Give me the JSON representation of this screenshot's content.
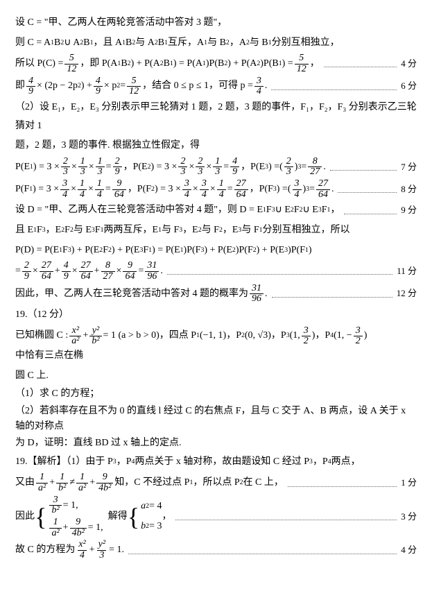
{
  "p1": "设 C = \"甲、乙两人在两轮竞答活动中答对 3 题\"，",
  "p2a": "则 C = A",
  "p2b": "B",
  "p2c": " ∪ A",
  "p2d": "B",
  "p2e": "，且 A",
  "p2f": "B",
  "p2g": " 与 A",
  "p2h": "B",
  "p2i": " 互斥，A",
  "p2j": " 与 B",
  "p2k": "，A",
  "p2l": " 与 B",
  "p2m": " 分别互相独立，",
  "p3a": "所以 P(C) = ",
  "p3b": "，即 P(A",
  "p3c": "B",
  "p3d": ") + P(A",
  "p3e": "B",
  "p3f": ") = P(A",
  "p3g": ")P(B",
  "p3h": ") + P(A",
  "p3i": ")P(B",
  "p3j": ") = ",
  "p3k": "，",
  "s4": "4 分",
  "p4a": "即 ",
  "p4b": " × (2p − 2p",
  "p4c": ") + ",
  "p4d": " × p",
  "p4e": " = ",
  "p4f": "，结合 0 ≤ p ≤ 1，可得 p = ",
  "p4g": " .",
  "s6": "6 分",
  "p5": "（2）设 E₁，E₂，E₃ 分别表示甲三轮猜对 1 题，2 题，3 题的事件，F₁，F₂，F₃ 分别表示乙三轮猜对 1",
  "p5b": "题，2 题，3 题的事件. 根据独立性假定，得",
  "p6a": "P(E",
  "p6b": ") = 3 × ",
  "p6c": " × ",
  "p6d": " × ",
  "p6e": " = ",
  "p6f": "，P(E",
  "p6g": ") = 3 × ",
  "p6h": " × ",
  "p6i": " × ",
  "p6j": " = ",
  "p6k": "，P(E",
  "p6l": ") = ",
  "p6m": " = ",
  "p6n": " .",
  "s7": "7 分",
  "p7a": "P(F",
  "p7b": ") = 3 × ",
  "p7c": " × ",
  "p7d": " × ",
  "p7e": " = ",
  "p7f": "，P(F",
  "p7g": ") = 3 × ",
  "p7h": " × ",
  "p7i": " × ",
  "p7j": " = ",
  "p7k": "，P(F",
  "p7l": ") = ",
  "p7m": " = ",
  "p7n": " .",
  "s8": "8 分",
  "p8a": "设 D = \"甲、乙两人在三轮竞答活动中答对 4 题\"，则 D = E",
  "p8b": "F",
  "p8c": " ∪ E",
  "p8d": "F",
  "p8e": " ∪ E",
  "p8f": "F",
  "p8g": "，",
  "s9": "9 分",
  "p9a": "且 E",
  "p9b": "F",
  "p9c": "，E",
  "p9d": "F",
  "p9e": " 与 E",
  "p9f": "F",
  "p9g": " 两两互斥，E",
  "p9h": " 与 F",
  "p9i": "，E",
  "p9j": " 与 F",
  "p9k": "，E",
  "p9l": " 与 F",
  "p9m": " 分别互相独立，所以",
  "p10a": "P(D) = P(E",
  "p10b": "F",
  "p10c": ") + P(E",
  "p10d": "F",
  "p10e": ") + P(E",
  "p10f": "F",
  "p10g": ") = P(E",
  "p10h": ")P(F",
  "p10i": ") + P(E",
  "p10j": ")P(F",
  "p10k": ") + P(E",
  "p10l": ")P(F",
  "p10m": ")",
  "p11a": "= ",
  "p11b": " × ",
  "p11c": " + ",
  "p11d": " × ",
  "p11e": " + ",
  "p11f": " × ",
  "p11g": " = ",
  "p11h": " .",
  "s11": "11 分",
  "p12a": "因此，甲、乙两人在三轮竞答活动中答对 4 题的概率为 ",
  "p12b": " .",
  "s12": "12 分",
  "q19": "19.（12 分）",
  "q19a": "已知椭圆 C : ",
  "q19b": " + ",
  "q19c": " = 1 (a > b > 0)，四点 P",
  "q19d": "(−1, 1)，P",
  "q19e": "(0, √3)，P",
  "q19f": "，P",
  "q19g": " 中恰有三点在椭",
  "q19h": "圆 C 上.",
  "q19i": "（1）求 C 的方程；",
  "q19j": "（2）若斜率存在且不为 0 的直线 l 经过 C 的右焦点 F，且与 C 交于 A、B 两点，设 A 关于 x 轴的对称点",
  "q19k": "为 D，证明：直线 BD 过 x 轴上的定点.",
  "a19a": "19.【解析】（1）由于 P",
  "a19b": "，P",
  "a19c": " 两点关于 x 轴对称，故由题设知 C 经过 P",
  "a19d": "，P",
  "a19e": " 两点，",
  "a20a": "又由 ",
  "a20b": " + ",
  "a20c": " ≠ ",
  "a20d": " + ",
  "a20e": " 知，C 不经过点 P",
  "a20f": "，所以点 P",
  "a20g": " 在 C 上，",
  "s1": "1 分",
  "a21a": "因此 ",
  "a21b": " = 1,",
  "a21c": " + ",
  "a21d": " = 1,",
  "a21e": "解得 ",
  "a21f": "a",
  "a21g": " = 4",
  "a21h": "b",
  "a21i": " = 3",
  "a21j": "，",
  "s3": "3 分",
  "a22a": "故 C 的方程为 ",
  "a22b": " + ",
  "a22c": " = 1.",
  "s4b": "4 分",
  "f": {
    "5_12n": "5",
    "5_12d": "12",
    "4_9n": "4",
    "4_9d": "9",
    "3_4n": "3",
    "3_4d": "4",
    "2_3n": "2",
    "2_3d": "3",
    "1_3n": "1",
    "1_3d": "3",
    "2_9n": "2",
    "2_9d": "9",
    "4_9n2": "4",
    "4_9d2": "9",
    "8_27n": "8",
    "8_27d": "27",
    "1_4n": "1",
    "1_4d": "4",
    "9_64n": "9",
    "9_64d": "64",
    "27_64n": "27",
    "27_64d": "64",
    "31_96n": "31",
    "31_96d": "96",
    "x2_a2n": "x²",
    "x2_a2d": "a²",
    "y2_b2n": "y²",
    "y2_b2d": "b²",
    "3_2n": "3",
    "3_2d": "2",
    "1_a2n": "1",
    "1_a2d": "a²",
    "1_b2n": "1",
    "1_b2d": "b²",
    "9_4b2n": "9",
    "9_4b2d": "4b²",
    "3_b2n": "3",
    "3_b2d": "b²",
    "x2_4n": "x²",
    "x2_4d": "4",
    "y2_3n": "y²",
    "y2_3d": "3"
  }
}
